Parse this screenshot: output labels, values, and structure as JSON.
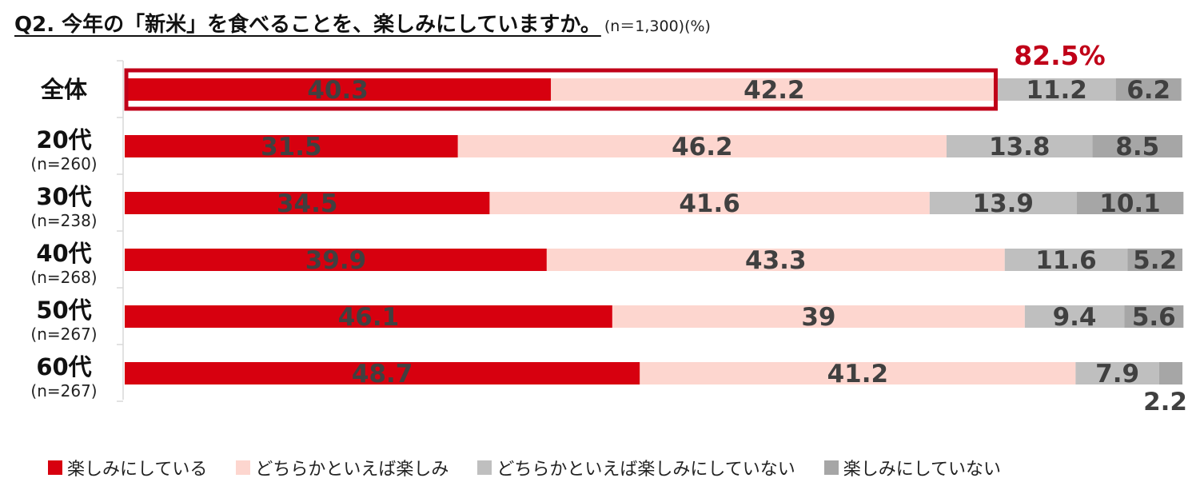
{
  "title": "Q2. 今年の「新米」を食べることを、楽しみにしていますか。",
  "title_note": "(n＝1,300)(%)",
  "chart_data": {
    "type": "bar",
    "orientation": "horizontal",
    "stacked": true,
    "xlim": [
      0,
      100
    ],
    "categories": [
      {
        "label": "全体",
        "n": ""
      },
      {
        "label": "20代",
        "n": "(n=260)"
      },
      {
        "label": "30代",
        "n": "(n=238)"
      },
      {
        "label": "40代",
        "n": "(n=268)"
      },
      {
        "label": "50代",
        "n": "(n=267)"
      },
      {
        "label": "60代",
        "n": "(n=267)"
      }
    ],
    "series": [
      {
        "name": "楽しみにしている",
        "color": "#d7000f",
        "values": [
          40.3,
          31.5,
          34.5,
          39.9,
          46.1,
          48.7
        ]
      },
      {
        "name": "どちらかといえば楽しみ",
        "color": "#fdd6cf",
        "values": [
          42.2,
          46.2,
          41.6,
          43.3,
          39,
          41.2
        ]
      },
      {
        "name": "どちらかといえば楽しみにしていない",
        "color": "#bfbfbf",
        "values": [
          11.2,
          13.8,
          13.9,
          11.6,
          9.4,
          7.9
        ]
      },
      {
        "name": "楽しみにしていない",
        "color": "#a6a6a6",
        "values": [
          6.2,
          8.5,
          10.1,
          5.2,
          5.6,
          2.2
        ]
      }
    ],
    "label_color": "#404040",
    "annotation": {
      "text": "82.5%",
      "color": "#c00018",
      "highlight_row": 0,
      "highlight_series_count": 2
    },
    "legend_position": "bottom",
    "grid": false
  }
}
